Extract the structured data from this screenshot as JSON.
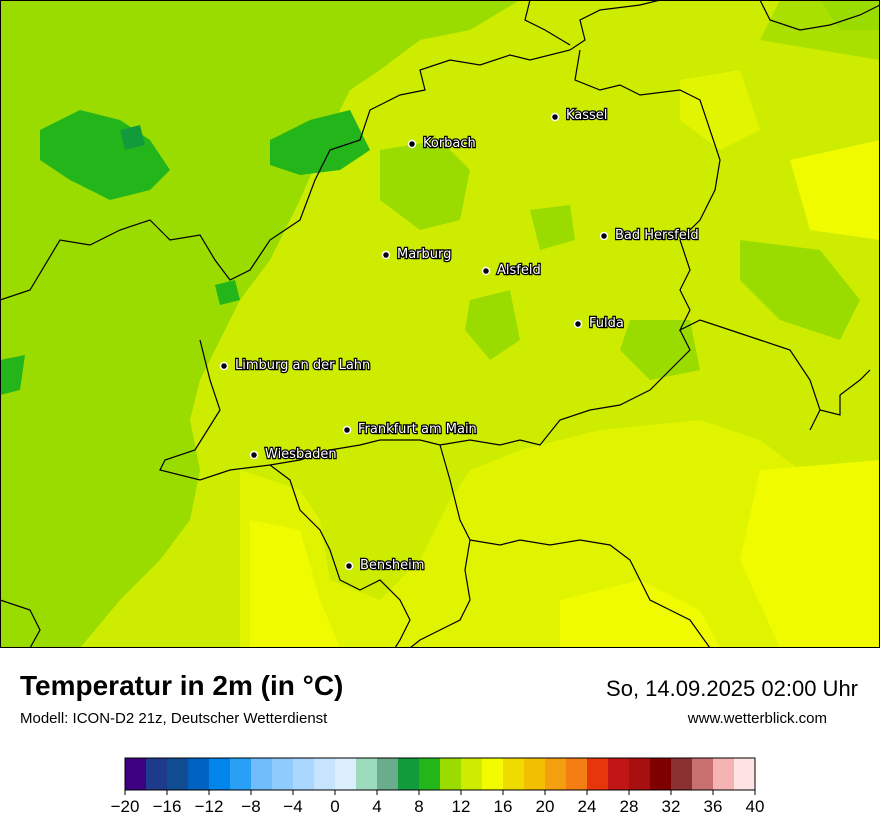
{
  "title": "Temperatur in 2m (in °C)",
  "subtitle": "Modell: ICON-D2 21z, Deutscher Wetterdienst",
  "datetime": "So, 14.09.2025 02:00 Uhr",
  "website": "www.wetterblick.com",
  "cities": [
    {
      "name": "Kassel"
    },
    {
      "name": "Korbach"
    },
    {
      "name": "Bad Hersfeld"
    },
    {
      "name": "Marburg"
    },
    {
      "name": "Alsfeld"
    },
    {
      "name": "Fulda"
    },
    {
      "name": "Limburg an der Lahn"
    },
    {
      "name": "Frankfurt am Main"
    },
    {
      "name": "Wiesbaden"
    },
    {
      "name": "Bensheim"
    }
  ],
  "legend": {
    "colors": [
      "#3c0080",
      "#1e3a8a",
      "#0f4c92",
      "#0063c2",
      "#0085ea",
      "#29a0f5",
      "#71bdfb",
      "#8fcbfc",
      "#a9d7fd",
      "#c6e4fe",
      "#dbeefe",
      "#9cdcbc",
      "#6aac8c",
      "#119b3a",
      "#24b51a",
      "#9adc00",
      "#cdec00",
      "#f2fb00",
      "#efdb00",
      "#f2c000",
      "#f39f10",
      "#f47d14",
      "#e8360c",
      "#c01616",
      "#a81010",
      "#7f0000",
      "#8b3030",
      "#c87070",
      "#f6b3b3",
      "#fee3e3"
    ],
    "tick_labels": [
      "−20",
      "−16",
      "−12",
      "−8",
      "−4",
      "0",
      "4",
      "8",
      "12",
      "16",
      "20",
      "24",
      "28",
      "32",
      "36",
      "40"
    ]
  }
}
